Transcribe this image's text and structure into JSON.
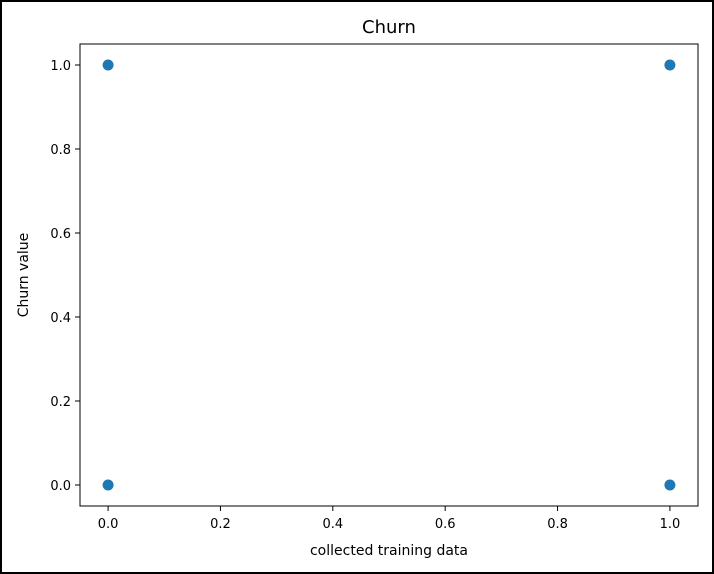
{
  "chart_data": {
    "type": "scatter",
    "title": "Churn",
    "xlabel": "collected training data",
    "ylabel": "Churn value",
    "xlim": [
      -0.05,
      1.05
    ],
    "ylim": [
      -0.05,
      1.05
    ],
    "x_ticks": [
      "0.0",
      "0.2",
      "0.4",
      "0.6",
      "0.8",
      "1.0"
    ],
    "y_ticks": [
      "0.0",
      "0.2",
      "0.4",
      "0.6",
      "0.8",
      "1.0"
    ],
    "grid": false,
    "points": [
      {
        "x": 0,
        "y": 1
      },
      {
        "x": 0,
        "y": 0
      },
      {
        "x": 1,
        "y": 1
      },
      {
        "x": 1,
        "y": 0
      }
    ],
    "marker_color": "#1f77b4"
  }
}
